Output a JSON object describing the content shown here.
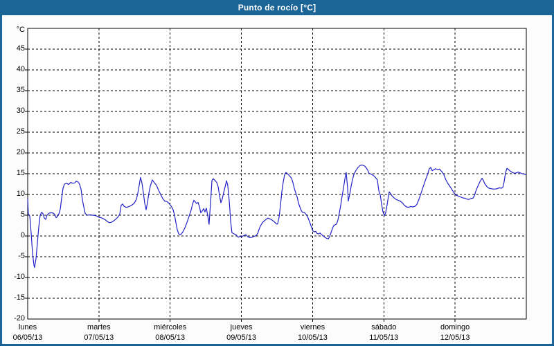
{
  "window": {
    "title": "Punto de rocío [°C]"
  },
  "colors": {
    "titlebar_bg": "#1b6496",
    "window_border": "#1b6496",
    "title_text": "#ffffff",
    "content_bg": "#fcfcfc",
    "plot_bg": "#ffffff",
    "plot_border": "#000000",
    "grid": "#000000",
    "label_text": "#000000",
    "line": "#2121c8"
  },
  "chart_data": {
    "type": "line",
    "title": "Punto de rocío [°C]",
    "xlabel": "",
    "ylabel": "°C",
    "grid": "dashed",
    "legend": "none",
    "y_axis": {
      "unit_label": "°C",
      "min": -20,
      "max": 50,
      "tick_step": 5,
      "tick_labels": [
        45,
        40,
        35,
        30,
        25,
        20,
        15,
        10,
        5,
        0,
        -5,
        -10,
        -15,
        -20
      ],
      "gridline_values": [
        45,
        40,
        35,
        30,
        25,
        20,
        15,
        10,
        5,
        0,
        -5,
        -10,
        -15
      ]
    },
    "x_axis": {
      "span_hours": 168,
      "days": [
        {
          "name": "lunes",
          "date": "06/05/13"
        },
        {
          "name": "martes",
          "date": "07/05/13"
        },
        {
          "name": "miércoles",
          "date": "08/05/13"
        },
        {
          "name": "jueves",
          "date": "09/05/13"
        },
        {
          "name": "viernes",
          "date": "10/05/13"
        },
        {
          "name": "sábado",
          "date": "11/05/13"
        },
        {
          "name": "domingo",
          "date": "12/05/13"
        }
      ]
    },
    "series": [
      {
        "name": "Punto de rocío",
        "unit": "°C",
        "color": "#2121c8",
        "points_hours_value": [
          [
            0,
            9
          ],
          [
            0.2,
            5.3
          ],
          [
            0.7,
            4.8
          ],
          [
            1.2,
            0.5
          ],
          [
            1.6,
            -4
          ],
          [
            2.1,
            -7
          ],
          [
            2.3,
            -7.6
          ],
          [
            2.8,
            -5.5
          ],
          [
            3.3,
            -1.5
          ],
          [
            3.7,
            2
          ],
          [
            4.2,
            5
          ],
          [
            4.7,
            5.7
          ],
          [
            5.1,
            5.4
          ],
          [
            5.6,
            4.3
          ],
          [
            6.1,
            4
          ],
          [
            6.5,
            5
          ],
          [
            7.2,
            5.5
          ],
          [
            7.9,
            5.6
          ],
          [
            8.6,
            5.5
          ],
          [
            9.1,
            5.2
          ],
          [
            9.6,
            4.4
          ],
          [
            10,
            4.7
          ],
          [
            10.5,
            5.3
          ],
          [
            11,
            6.5
          ],
          [
            11.4,
            9
          ],
          [
            11.9,
            11.5
          ],
          [
            12.4,
            12.5
          ],
          [
            13.1,
            12.7
          ],
          [
            13.8,
            12.4
          ],
          [
            14.5,
            12.9
          ],
          [
            15.2,
            12.7
          ],
          [
            15.9,
            12.8
          ],
          [
            16.3,
            13.2
          ],
          [
            17,
            13
          ],
          [
            17.5,
            12.4
          ],
          [
            18,
            11.2
          ],
          [
            18.4,
            8.8
          ],
          [
            18.9,
            7
          ],
          [
            19.4,
            5.4
          ],
          [
            20.1,
            5
          ],
          [
            21,
            5.1
          ],
          [
            21.9,
            5
          ],
          [
            22.9,
            4.9
          ],
          [
            23.6,
            4.7
          ],
          [
            24,
            4.5
          ],
          [
            24.7,
            4.4
          ],
          [
            25.4,
            4.2
          ],
          [
            26.1,
            3.9
          ],
          [
            26.8,
            3.5
          ],
          [
            27.5,
            3.2
          ],
          [
            28.2,
            3.3
          ],
          [
            28.9,
            3.6
          ],
          [
            29.6,
            4
          ],
          [
            30.3,
            4.5
          ],
          [
            31,
            5.2
          ],
          [
            31.5,
            7.4
          ],
          [
            32,
            7.7
          ],
          [
            32.4,
            7.2
          ],
          [
            33.1,
            6.9
          ],
          [
            33.8,
            7
          ],
          [
            34.5,
            7.2
          ],
          [
            35.2,
            7.5
          ],
          [
            35.9,
            7.9
          ],
          [
            36.6,
            8.8
          ],
          [
            37.1,
            10.3
          ],
          [
            37.6,
            12.3
          ],
          [
            38,
            14.1
          ],
          [
            38.5,
            12.8
          ],
          [
            39,
            10.3
          ],
          [
            39.4,
            8
          ],
          [
            39.9,
            6.3
          ],
          [
            40.4,
            8.2
          ],
          [
            40.8,
            10.2
          ],
          [
            41.3,
            12
          ],
          [
            42,
            13.5
          ],
          [
            42.7,
            12.8
          ],
          [
            43.4,
            12.2
          ],
          [
            44.1,
            11
          ],
          [
            44.8,
            10
          ],
          [
            45.5,
            9
          ],
          [
            46.2,
            8.4
          ],
          [
            46.9,
            8.3
          ],
          [
            47.6,
            7.9
          ],
          [
            48.1,
            7.4
          ],
          [
            48.5,
            7
          ],
          [
            49,
            6.3
          ],
          [
            49.5,
            5
          ],
          [
            49.9,
            3.3
          ],
          [
            50.4,
            1.5
          ],
          [
            50.9,
            0.5
          ],
          [
            51.3,
            0.3
          ],
          [
            51.8,
            0.5
          ],
          [
            52.3,
            1
          ],
          [
            53,
            2
          ],
          [
            53.7,
            3.3
          ],
          [
            54.4,
            4.8
          ],
          [
            55.1,
            6.3
          ],
          [
            55.5,
            7.6
          ],
          [
            56,
            8.6
          ],
          [
            56.5,
            8.2
          ],
          [
            56.9,
            7.8
          ],
          [
            57.4,
            8.1
          ],
          [
            57.9,
            7
          ],
          [
            58.3,
            5.6
          ],
          [
            58.8,
            6
          ],
          [
            59.3,
            6.6
          ],
          [
            59.7,
            5.8
          ],
          [
            60.2,
            6.7
          ],
          [
            60.7,
            4.8
          ],
          [
            61.1,
            2.8
          ],
          [
            61.6,
            8
          ],
          [
            62.1,
            13.4
          ],
          [
            62.5,
            13.8
          ],
          [
            63.2,
            13.3
          ],
          [
            63.7,
            12.9
          ],
          [
            64.2,
            11.8
          ],
          [
            64.6,
            9.8
          ],
          [
            65.1,
            8
          ],
          [
            65.6,
            9
          ],
          [
            66,
            10.4
          ],
          [
            66.5,
            11.8
          ],
          [
            67,
            13.3
          ],
          [
            67.4,
            12.2
          ],
          [
            67.9,
            8.5
          ],
          [
            68.4,
            3.5
          ],
          [
            68.8,
            0.8
          ],
          [
            69.5,
            0.5
          ],
          [
            70.2,
            0.3
          ],
          [
            70.9,
            -0.3
          ],
          [
            71.6,
            -0.1
          ],
          [
            72.1,
            -0.2
          ],
          [
            72.8,
            0.1
          ],
          [
            73.5,
            0.3
          ],
          [
            74.2,
            -0.2
          ],
          [
            74.9,
            -0.4
          ],
          [
            75.6,
            -0.3
          ],
          [
            76.3,
            -0.1
          ],
          [
            77,
            0.1
          ],
          [
            77.5,
            0.6
          ],
          [
            77.9,
            1.5
          ],
          [
            78.4,
            2.4
          ],
          [
            79.1,
            3.2
          ],
          [
            79.8,
            3.7
          ],
          [
            80.5,
            4.1
          ],
          [
            81,
            4.3
          ],
          [
            81.7,
            4.1
          ],
          [
            82.4,
            3.8
          ],
          [
            83.1,
            3.4
          ],
          [
            83.8,
            2.9
          ],
          [
            84.2,
            2.9
          ],
          [
            84.7,
            4.5
          ],
          [
            85.2,
            7.5
          ],
          [
            85.6,
            10.5
          ],
          [
            86.1,
            13
          ],
          [
            86.6,
            14.8
          ],
          [
            87,
            15.3
          ],
          [
            87.5,
            15
          ],
          [
            88.2,
            14.5
          ],
          [
            88.9,
            13.9
          ],
          [
            89.4,
            12.8
          ],
          [
            89.8,
            11.5
          ],
          [
            90.3,
            10.4
          ],
          [
            90.8,
            9.4
          ],
          [
            91.2,
            8
          ],
          [
            91.7,
            7
          ],
          [
            92.2,
            6.1
          ],
          [
            92.6,
            5.7
          ],
          [
            93.3,
            5.6
          ],
          [
            94,
            5
          ],
          [
            94.5,
            4.3
          ],
          [
            95.2,
            3
          ],
          [
            95.7,
            2
          ],
          [
            96.1,
            1.2
          ],
          [
            96.6,
            1
          ],
          [
            97.1,
            1.1
          ],
          [
            97.5,
            0.6
          ],
          [
            98,
            0.5
          ],
          [
            98.5,
            0.7
          ],
          [
            98.9,
            0.4
          ],
          [
            99.4,
            0.1
          ],
          [
            100.1,
            -0.3
          ],
          [
            100.8,
            -0.6
          ],
          [
            101.3,
            -0.7
          ],
          [
            101.7,
            -0.2
          ],
          [
            102.2,
            0.8
          ],
          [
            102.7,
            1.8
          ],
          [
            103.1,
            2.5
          ],
          [
            103.6,
            2.7
          ],
          [
            104.1,
            2.9
          ],
          [
            104.5,
            3.8
          ],
          [
            105,
            5.5
          ],
          [
            105.5,
            7.5
          ],
          [
            105.9,
            9.5
          ],
          [
            106.4,
            11.5
          ],
          [
            106.9,
            13.8
          ],
          [
            107.3,
            15.3
          ],
          [
            107.8,
            11.5
          ],
          [
            108,
            8.4
          ],
          [
            108.5,
            10
          ],
          [
            109,
            12
          ],
          [
            109.4,
            13.5
          ],
          [
            109.9,
            14.8
          ],
          [
            110.6,
            15.8
          ],
          [
            111.3,
            16.5
          ],
          [
            112,
            17
          ],
          [
            112.7,
            17.1
          ],
          [
            113.4,
            16.9
          ],
          [
            114.1,
            16.4
          ],
          [
            114.6,
            15.8
          ],
          [
            115,
            15.1
          ],
          [
            115.7,
            14.9
          ],
          [
            116.4,
            14.6
          ],
          [
            116.9,
            14.3
          ],
          [
            117.4,
            13.9
          ],
          [
            117.8,
            13.5
          ],
          [
            118.3,
            10.9
          ],
          [
            118.8,
            9.9
          ],
          [
            119.2,
            7.8
          ],
          [
            119.7,
            5.8
          ],
          [
            120.2,
            4.9
          ],
          [
            120.6,
            5.6
          ],
          [
            121.1,
            7.5
          ],
          [
            121.6,
            9.8
          ],
          [
            121.8,
            10.6
          ],
          [
            122.3,
            10.2
          ],
          [
            122.7,
            9.7
          ],
          [
            123.4,
            9.2
          ],
          [
            124.1,
            8.8
          ],
          [
            124.8,
            8.6
          ],
          [
            125.5,
            8.4
          ],
          [
            126.2,
            8
          ],
          [
            126.9,
            7.4
          ],
          [
            127.6,
            7
          ],
          [
            128.3,
            6.9
          ],
          [
            129,
            7.1
          ],
          [
            129.7,
            7
          ],
          [
            130.4,
            7.1
          ],
          [
            131.1,
            7.6
          ],
          [
            131.8,
            8.8
          ],
          [
            132.3,
            9.8
          ],
          [
            133,
            11.3
          ],
          [
            133.7,
            12.8
          ],
          [
            134.4,
            14.2
          ],
          [
            134.9,
            15.2
          ],
          [
            135.3,
            16.2
          ],
          [
            135.8,
            16.5
          ],
          [
            136.3,
            15.7
          ],
          [
            136.7,
            15.9
          ],
          [
            137.4,
            16.2
          ],
          [
            138.1,
            16
          ],
          [
            138.8,
            16.1
          ],
          [
            139.5,
            15.5
          ],
          [
            140.2,
            14.8
          ],
          [
            140.9,
            13.5
          ],
          [
            141.6,
            12.6
          ],
          [
            142.3,
            11.9
          ],
          [
            143,
            11.1
          ],
          [
            143.7,
            10.3
          ],
          [
            144.4,
            9.8
          ],
          [
            145.1,
            9.6
          ],
          [
            145.8,
            9.4
          ],
          [
            146.5,
            9.2
          ],
          [
            147.2,
            9.1
          ],
          [
            147.9,
            8.9
          ],
          [
            148.6,
            8.8
          ],
          [
            149.3,
            9
          ],
          [
            150,
            9.1
          ],
          [
            150.5,
            9.7
          ],
          [
            151,
            10.8
          ],
          [
            151.7,
            12
          ],
          [
            152.4,
            13.1
          ],
          [
            153.1,
            13.9
          ],
          [
            153.5,
            13.4
          ],
          [
            154,
            12.6
          ],
          [
            154.7,
            11.9
          ],
          [
            155.4,
            11.5
          ],
          [
            156.1,
            11.4
          ],
          [
            156.8,
            11.3
          ],
          [
            157.5,
            11.3
          ],
          [
            158.2,
            11.4
          ],
          [
            158.9,
            11.6
          ],
          [
            159.6,
            11.5
          ],
          [
            160.1,
            11.7
          ],
          [
            160.5,
            13
          ],
          [
            161,
            15.2
          ],
          [
            161.5,
            16.3
          ],
          [
            162,
            16
          ],
          [
            162.6,
            15.6
          ],
          [
            163.3,
            15.3
          ],
          [
            164,
            15.1
          ],
          [
            164.7,
            15.2
          ],
          [
            165.2,
            15.4
          ],
          [
            165.9,
            15.2
          ],
          [
            166.6,
            15
          ],
          [
            167.3,
            14.9
          ],
          [
            168,
            14.7
          ]
        ]
      }
    ]
  }
}
